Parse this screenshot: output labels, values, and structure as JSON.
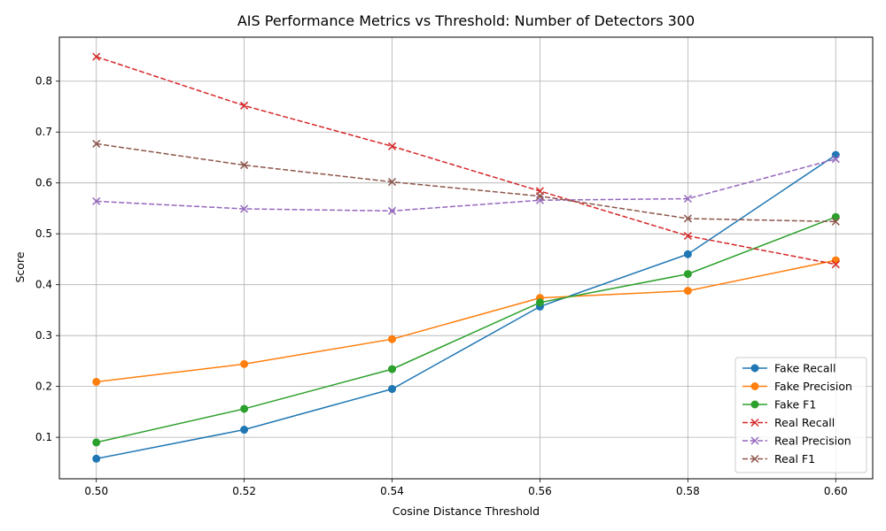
{
  "chart_data": {
    "type": "line",
    "title": "AIS Performance Metrics vs Threshold: Number of Detectors 300",
    "xlabel": "Cosine Distance Threshold",
    "ylabel": "Score",
    "x": [
      0.5,
      0.52,
      0.54,
      0.56,
      0.58,
      0.6
    ],
    "x_tick_labels": [
      "0.50",
      "0.52",
      "0.54",
      "0.56",
      "0.58",
      "0.60"
    ],
    "y_ticks": [
      0.1,
      0.2,
      0.3,
      0.4,
      0.5,
      0.6,
      0.7,
      0.8
    ],
    "y_tick_labels": [
      "0.1",
      "0.2",
      "0.3",
      "0.4",
      "0.5",
      "0.6",
      "0.7",
      "0.8"
    ],
    "xlim": [
      0.495,
      0.605
    ],
    "ylim": [
      0.0185,
      0.8865
    ],
    "grid": true,
    "legend_position": "lower-right",
    "series": [
      {
        "name": "Fake Recall",
        "color": "#1f77b4",
        "marker": "circle",
        "linestyle": "solid",
        "values": [
          0.058,
          0.115,
          0.195,
          0.357,
          0.46,
          0.655
        ]
      },
      {
        "name": "Fake Precision",
        "color": "#ff7f0e",
        "marker": "circle",
        "linestyle": "solid",
        "values": [
          0.209,
          0.244,
          0.293,
          0.374,
          0.388,
          0.448
        ]
      },
      {
        "name": "Fake F1",
        "color": "#2ca02c",
        "marker": "circle",
        "linestyle": "solid",
        "values": [
          0.09,
          0.156,
          0.234,
          0.365,
          0.421,
          0.533
        ]
      },
      {
        "name": "Real Recall",
        "color": "#d62728",
        "marker": "x",
        "linestyle": "dashed",
        "values": [
          0.848,
          0.752,
          0.672,
          0.584,
          0.496,
          0.44
        ]
      },
      {
        "name": "Real Precision",
        "color": "#9467bd",
        "marker": "x",
        "linestyle": "dashed",
        "values": [
          0.564,
          0.549,
          0.545,
          0.566,
          0.569,
          0.647
        ]
      },
      {
        "name": "Real F1",
        "color": "#8c564b",
        "marker": "x",
        "linestyle": "dashed",
        "values": [
          0.677,
          0.635,
          0.602,
          0.574,
          0.53,
          0.524
        ]
      }
    ]
  }
}
